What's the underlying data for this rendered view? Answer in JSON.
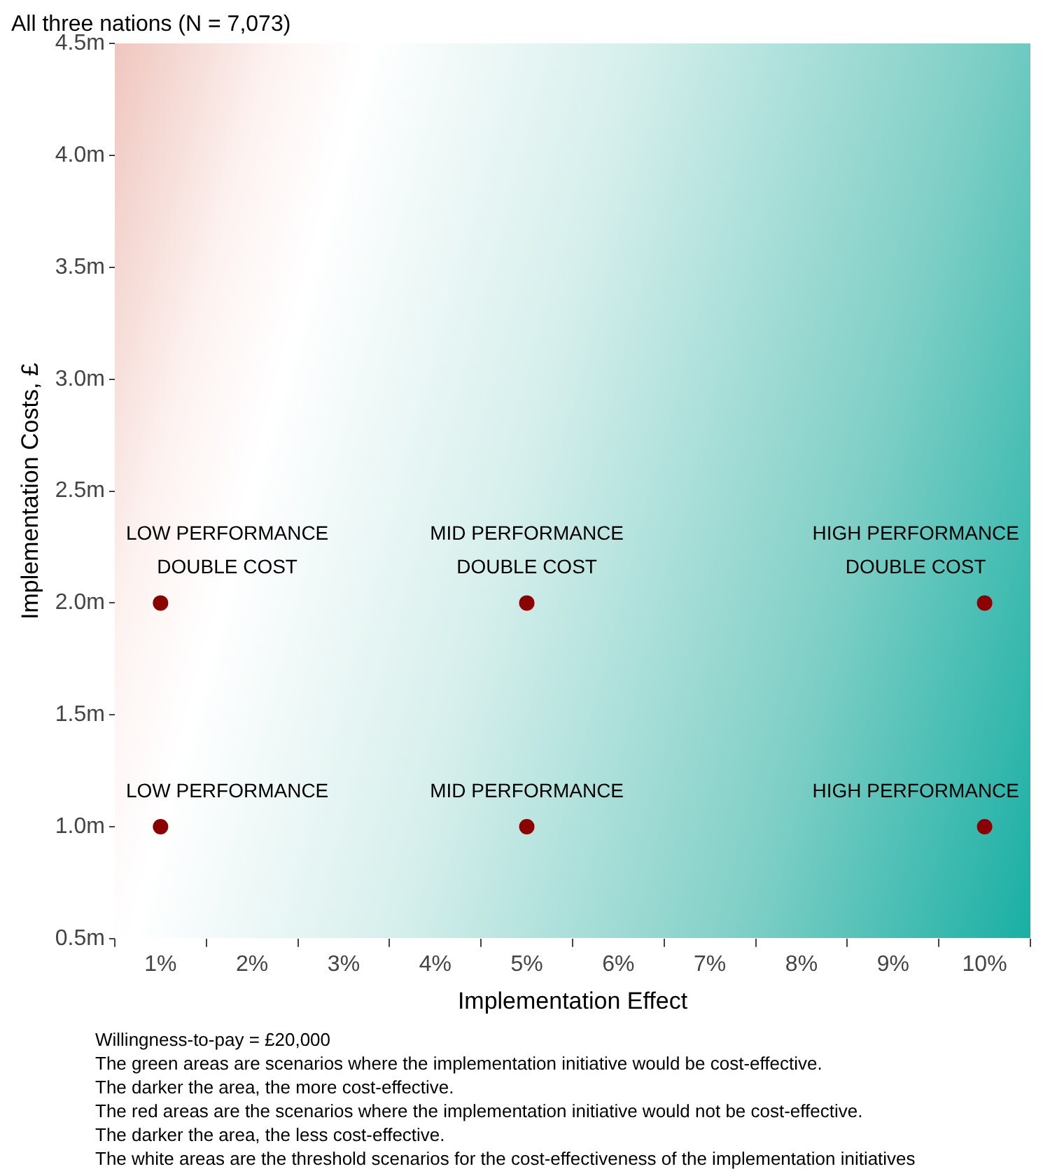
{
  "chart_data": {
    "type": "scatter",
    "title": "All three nations (N = 7,073)",
    "xlabel": "Implementation Effect",
    "ylabel": "Implementation Costs, £",
    "categories": [
      "1%",
      "2%",
      "3%",
      "4%",
      "5%",
      "6%",
      "7%",
      "8%",
      "9%",
      "10%"
    ],
    "ylim": [
      0.5,
      4.5
    ],
    "yticks": [
      {
        "value": 0.5,
        "label": "0.5m"
      },
      {
        "value": 1,
        "label": "1.0m"
      },
      {
        "value": 1.5,
        "label": "1.5m"
      },
      {
        "value": 2,
        "label": "2.0m"
      },
      {
        "value": 2.5,
        "label": "2.5m"
      },
      {
        "value": 3,
        "label": "3.0m"
      },
      {
        "value": 3.5,
        "label": "3.5m"
      },
      {
        "value": 4,
        "label": "4.0m"
      },
      {
        "value": 4.5,
        "label": "4.5m"
      }
    ],
    "series": [
      {
        "color": "#8b0000",
        "x": [
          "1%",
          "5%",
          "10%",
          "1%",
          "5%",
          "10%"
        ],
        "values": [
          2,
          2,
          2,
          1,
          1,
          1
        ]
      }
    ],
    "marker": "circle",
    "legend": false,
    "annotations": [
      {
        "text": "LOW PERFORMANCE\nDOUBLE COST",
        "x": "1%",
        "y": 2
      },
      {
        "text": "MID PERFORMANCE\nDOUBLE COST",
        "x": "5%",
        "y": 2
      },
      {
        "text": "HIGH PERFORMANCE\nDOUBLE COST",
        "x": "10%",
        "y": 2
      },
      {
        "text": "LOW PERFORMANCE",
        "x": "1%",
        "y": 1
      },
      {
        "text": "MID PERFORMANCE",
        "x": "5%",
        "y": 1
      },
      {
        "text": "HIGH PERFORMANCE",
        "x": "10%",
        "y": 1
      },
      "Willingness-to-pay = £20,000",
      "The green areas are scenarios where the implementation initiative would be cost-effective.",
      "The darker the area, the more cost-effective.",
      "The red areas are the scenarios where the implementation initiative would not be cost-effective.",
      "The darker the area, the less cost-effective.",
      "The white areas are the threshold scenarios for the cost-effectiveness of the implementation initiatives"
    ]
  }
}
